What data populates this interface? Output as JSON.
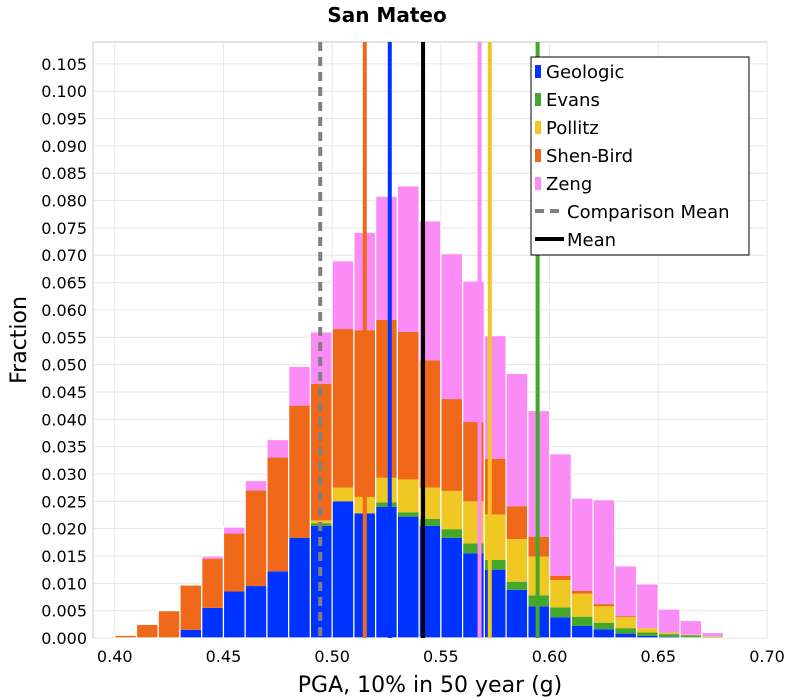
{
  "chart_data": {
    "type": "bar",
    "stacked": true,
    "title": "San Mateo",
    "xlabel": "PGA, 10% in 50 year (g)",
    "ylabel": "Fraction",
    "xlim": [
      0.39,
      0.7
    ],
    "ylim": [
      0,
      0.109
    ],
    "x_ticks": [
      "0.40",
      "0.45",
      "0.50",
      "0.55",
      "0.60",
      "0.65",
      "0.70"
    ],
    "y_ticks": [
      "0.000",
      "0.005",
      "0.010",
      "0.015",
      "0.020",
      "0.025",
      "0.030",
      "0.035",
      "0.040",
      "0.045",
      "0.050",
      "0.055",
      "0.060",
      "0.065",
      "0.070",
      "0.075",
      "0.080",
      "0.085",
      "0.090",
      "0.095",
      "0.100",
      "0.105"
    ],
    "grid": true,
    "legend_position": "top-right",
    "bin_width": 0.01,
    "bin_centers": [
      0.395,
      0.405,
      0.415,
      0.425,
      0.435,
      0.445,
      0.455,
      0.465,
      0.475,
      0.485,
      0.495,
      0.505,
      0.515,
      0.525,
      0.535,
      0.545,
      0.555,
      0.565,
      0.575,
      0.585,
      0.595,
      0.605,
      0.615,
      0.625,
      0.635,
      0.645,
      0.655,
      0.665,
      0.675,
      0.685,
      0.695
    ],
    "series": [
      {
        "name": "Geologic",
        "color": "#0033ff",
        "values": [
          0,
          0,
          0,
          0,
          0.0015,
          0.0055,
          0.0085,
          0.0095,
          0.0122,
          0.0183,
          0.0205,
          0.025,
          0.0228,
          0.024,
          0.0222,
          0.0205,
          0.0183,
          0.0155,
          0.0125,
          0.0088,
          0.0058,
          0.0038,
          0.0022,
          0.0016,
          0.0008,
          0.0004,
          0.0002,
          0.0001,
          0,
          0,
          0
        ]
      },
      {
        "name": "Evans",
        "color": "#44a62a",
        "values": [
          0,
          0,
          0,
          0,
          0,
          0,
          0,
          0,
          0,
          0,
          0.0005,
          0,
          0,
          0.0008,
          0.0008,
          0.0013,
          0.0016,
          0.0018,
          0.0018,
          0.0015,
          0.002,
          0.0018,
          0.0017,
          0.0012,
          0.001,
          0.0006,
          0.0005,
          0.0004,
          0.0002,
          0,
          0
        ]
      },
      {
        "name": "Pollitz",
        "color": "#f0c823",
        "values": [
          0,
          0,
          0,
          0,
          0,
          0,
          0,
          0,
          0,
          0,
          0.0005,
          0.0025,
          0.003,
          0.0045,
          0.006,
          0.0057,
          0.007,
          0.0077,
          0.0083,
          0.0078,
          0.0071,
          0.005,
          0.0042,
          0.003,
          0.002,
          0.0008,
          0.0003,
          0.0001,
          0.0001,
          0,
          0
        ]
      },
      {
        "name": "Shen-Bird",
        "color": "#f0691b",
        "values": [
          0,
          0.0005,
          0.0025,
          0.005,
          0.0082,
          0.009,
          0.0106,
          0.0175,
          0.0208,
          0.0242,
          0.025,
          0.029,
          0.0305,
          0.0289,
          0.027,
          0.0233,
          0.0168,
          0.0145,
          0.0102,
          0.006,
          0.0036,
          0.0008,
          0.0005,
          0.0004,
          0.0002,
          0,
          0,
          0,
          0,
          0,
          0
        ]
      },
      {
        "name": "Zeng",
        "color": "#fb8cf6",
        "values": [
          0,
          0,
          0,
          0,
          0,
          0.0005,
          0.0012,
          0.0018,
          0.0033,
          0.0072,
          0.0095,
          0.0125,
          0.0179,
          0.0226,
          0.0267,
          0.0255,
          0.0266,
          0.0258,
          0.0225,
          0.0243,
          0.0231,
          0.0223,
          0.017,
          0.0191,
          0.0092,
          0.0081,
          0.0043,
          0.0026,
          0.0007,
          0,
          0
        ]
      }
    ],
    "vertical_lines": [
      {
        "label": "Geologic",
        "x": 0.5265,
        "color": "#0033ff",
        "dash": false
      },
      {
        "label": "Evans",
        "x": 0.5945,
        "color": "#44a62a",
        "dash": false
      },
      {
        "label": "Pollitz",
        "x": 0.5725,
        "color": "#f0c823",
        "dash": false
      },
      {
        "label": "Shen-Bird",
        "x": 0.515,
        "color": "#f0691b",
        "dash": false
      },
      {
        "label": "Zeng",
        "x": 0.5678,
        "color": "#fb8cf6",
        "dash": false
      },
      {
        "label": "Comparison Mean",
        "x": 0.4945,
        "color": "#808080",
        "dash": true
      },
      {
        "label": "Mean",
        "x": 0.5418,
        "color": "#000000",
        "dash": false
      }
    ],
    "legend": [
      {
        "label": "Geologic",
        "color": "#0033ff",
        "style": "box"
      },
      {
        "label": "Evans",
        "color": "#44a62a",
        "style": "box"
      },
      {
        "label": "Pollitz",
        "color": "#f0c823",
        "style": "box"
      },
      {
        "label": "Shen-Bird",
        "color": "#f0691b",
        "style": "box"
      },
      {
        "label": "Zeng",
        "color": "#fb8cf6",
        "style": "box"
      },
      {
        "label": "Comparison Mean",
        "color": "#808080",
        "style": "dash"
      },
      {
        "label": "Mean",
        "color": "#000000",
        "style": "line"
      }
    ]
  }
}
